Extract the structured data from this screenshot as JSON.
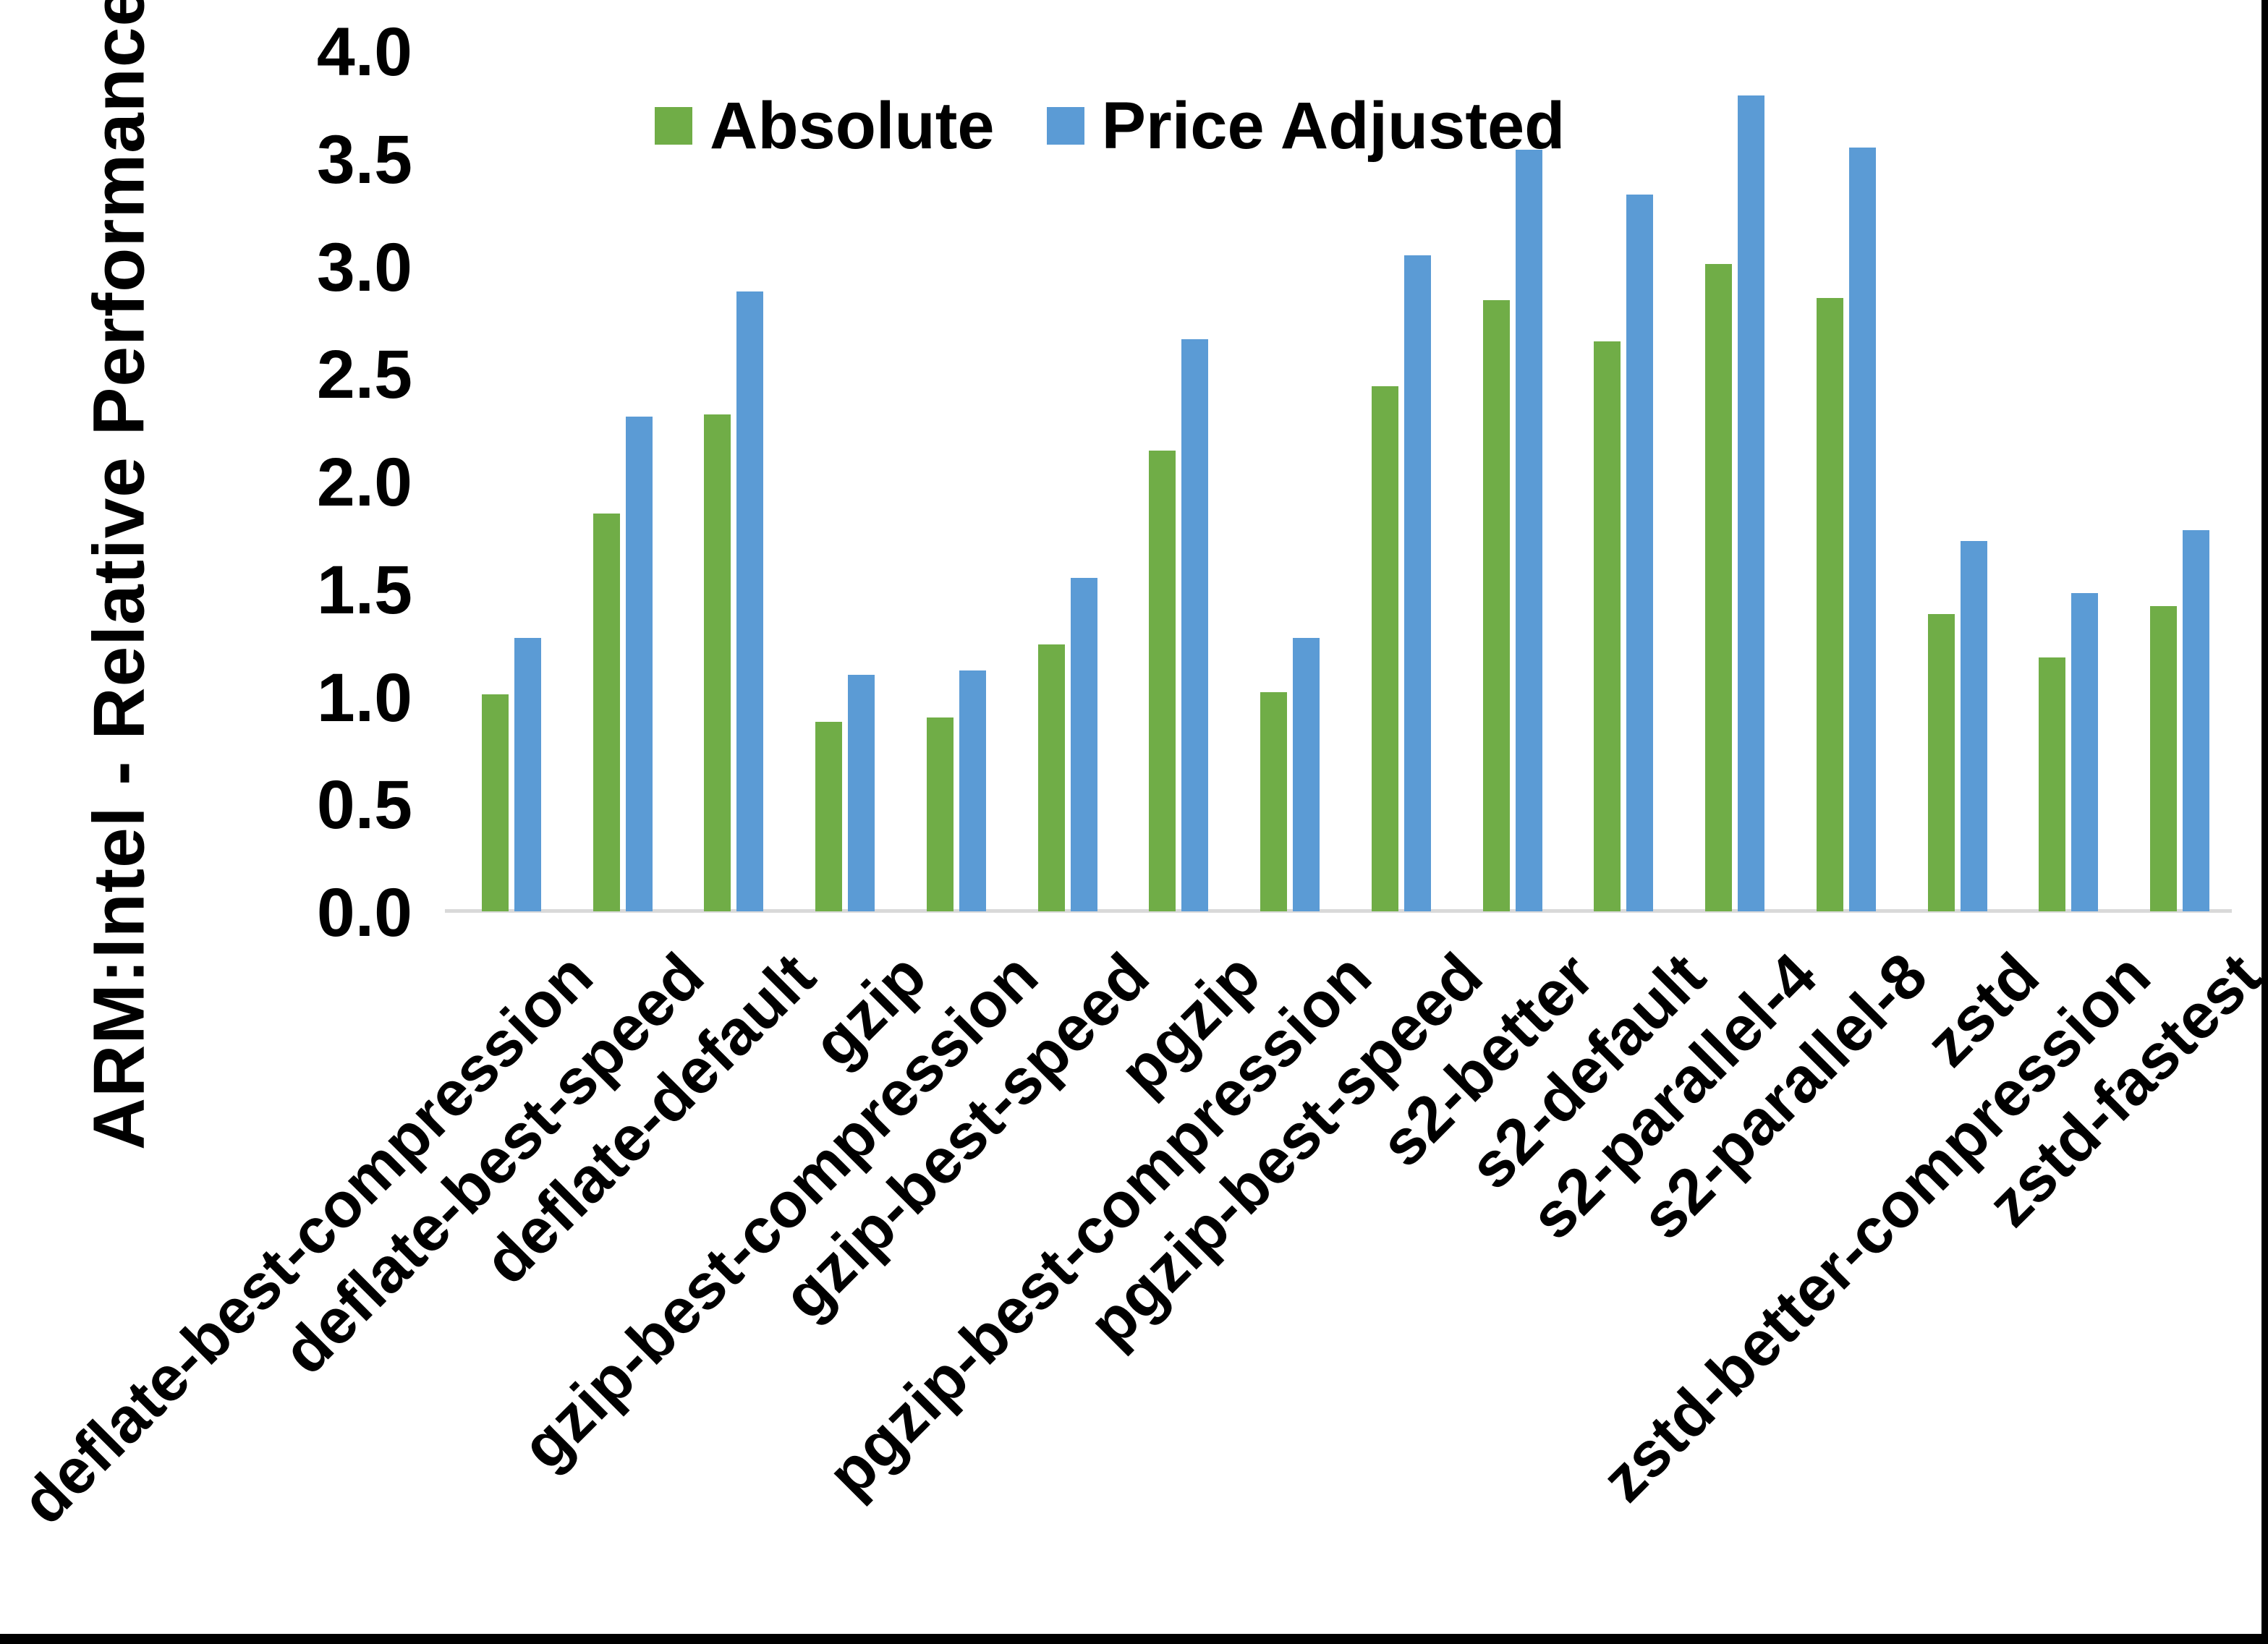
{
  "figure": {
    "y_axis_title": "ARM:Intel - Relative Performance",
    "background_color": "#ffffff",
    "frame": {
      "right_edge_color": "#000000",
      "bottom_edge_color": "#000000"
    },
    "axis": {
      "line_color": "#d9d9d9",
      "tick_labels": [
        "4.0",
        "3.5",
        "3.0",
        "2.5",
        "2.0",
        "1.5",
        "1.0",
        "0.5",
        "0.0"
      ],
      "tick_values": [
        4.0,
        3.5,
        3.0,
        2.5,
        2.0,
        1.5,
        1.0,
        0.5,
        0.0
      ]
    }
  },
  "chart_data": {
    "type": "bar",
    "title": "",
    "xlabel": "",
    "ylabel": "ARM:Intel - Relative Performance",
    "ylim": [
      0.0,
      4.0
    ],
    "ytick_step": 0.5,
    "grid": false,
    "legend_position": "top-center",
    "categories": [
      "deflate-best-compression",
      "deflate-best-speed",
      "deflate-default",
      "gzip",
      "gzip-best-compression",
      "gzip-best-speed",
      "pgzip",
      "pgzip-best-compression",
      "pgzip-best-speed",
      "s2-better",
      "s2-default",
      "s2-parallel-4",
      "s2-parallel-8",
      "zstd",
      "zstd-better-compression",
      "zstd-fastest"
    ],
    "series": [
      {
        "name": "Absolute",
        "color": "#70ad47",
        "values": [
          1.01,
          1.85,
          2.31,
          0.88,
          0.9,
          1.24,
          2.14,
          1.02,
          2.44,
          2.84,
          2.65,
          3.01,
          2.85,
          1.38,
          1.18,
          1.42
        ]
      },
      {
        "name": "Price Adjusted",
        "color": "#5b9bd5",
        "values": [
          1.27,
          2.3,
          2.88,
          1.1,
          1.12,
          1.55,
          2.66,
          1.27,
          3.05,
          3.54,
          3.33,
          3.79,
          3.55,
          1.72,
          1.48,
          1.77
        ]
      }
    ]
  }
}
